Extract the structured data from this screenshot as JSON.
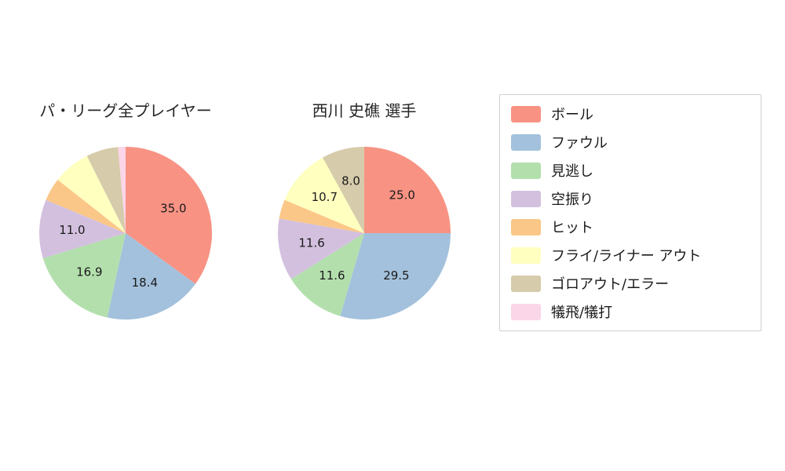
{
  "page": {
    "background_color": "#ffffff"
  },
  "palette": {
    "ball": "#f89384",
    "foul": "#a3c1dc",
    "looking": "#b3dfad",
    "swinging": "#d3c0df",
    "hit": "#fbc788",
    "fly_liner_out": "#ffffc0",
    "groundout_error": "#d6cbaa",
    "sacrifice": "#fbd5e8"
  },
  "chart_data": [
    {
      "type": "pie",
      "title": "パ・リーグ全プレイヤー",
      "labels": [
        "ボール",
        "ファウル",
        "見逃し",
        "空振り",
        "ヒット",
        "フライ/ライナー アウト",
        "ゴロアウト/エラー",
        "犠飛/犠打"
      ],
      "values": [
        35.0,
        18.4,
        16.9,
        11.0,
        4.3,
        7.0,
        6.0,
        1.4
      ],
      "value_labels": [
        "35.0",
        "18.4",
        "16.9",
        "11.0",
        "",
        "",
        "",
        ""
      ],
      "colors": [
        "#f89384",
        "#a3c1dc",
        "#b3dfad",
        "#d3c0df",
        "#fbc788",
        "#ffffc0",
        "#d6cbaa",
        "#fbd5e8"
      ],
      "start_angle_deg": 90,
      "direction": "clockwise"
    },
    {
      "type": "pie",
      "title": "西川 史礁  選手",
      "labels": [
        "ボール",
        "ファウル",
        "見逃し",
        "空振り",
        "ヒット",
        "フライ/ライナー アウト",
        "ゴロアウト/エラー",
        "犠飛/犠打"
      ],
      "values": [
        25.0,
        29.5,
        11.6,
        11.6,
        3.6,
        10.7,
        8.0,
        0.0
      ],
      "value_labels": [
        "25.0",
        "29.5",
        "11.6",
        "11.6",
        "",
        "10.7",
        "8.0",
        ""
      ],
      "colors": [
        "#f89384",
        "#a3c1dc",
        "#b3dfad",
        "#d3c0df",
        "#fbc788",
        "#ffffc0",
        "#d6cbaa",
        "#fbd5e8"
      ],
      "start_angle_deg": 90,
      "direction": "clockwise"
    }
  ],
  "legend": {
    "items": [
      {
        "label": "ボール",
        "color": "#f89384"
      },
      {
        "label": "ファウル",
        "color": "#a3c1dc"
      },
      {
        "label": "見逃し",
        "color": "#b3dfad"
      },
      {
        "label": "空振り",
        "color": "#d3c0df"
      },
      {
        "label": "ヒット",
        "color": "#fbc788"
      },
      {
        "label": "フライ/ライナー アウト",
        "color": "#ffffc0"
      },
      {
        "label": "ゴロアウト/エラー",
        "color": "#d6cbaa"
      },
      {
        "label": "犠飛/犠打",
        "color": "#fbd5e8"
      }
    ]
  }
}
